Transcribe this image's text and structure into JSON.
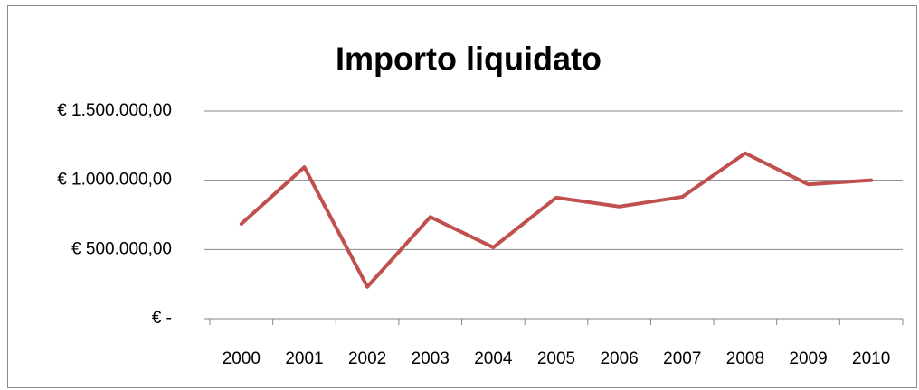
{
  "chart_data": {
    "type": "line",
    "title": "Importo liquidato",
    "categories": [
      "2000",
      "2001",
      "2002",
      "2003",
      "2004",
      "2005",
      "2006",
      "2007",
      "2008",
      "2009",
      "2010"
    ],
    "series": [
      {
        "name": "Importo liquidato",
        "color": "#c0504d",
        "values": [
          685000,
          1095000,
          230000,
          735000,
          515000,
          875000,
          810000,
          880000,
          1195000,
          970000,
          1000000
        ]
      }
    ],
    "ylim": [
      0,
      1500000
    ],
    "yticks": [
      {
        "value": 0,
        "label": "€ -"
      },
      {
        "value": 500000,
        "label": "€ 500.000,00"
      },
      {
        "value": 1000000,
        "label": "€ 1.000.000,00"
      },
      {
        "value": 1500000,
        "label": "€ 1.500.000,00"
      }
    ],
    "grid": true
  }
}
